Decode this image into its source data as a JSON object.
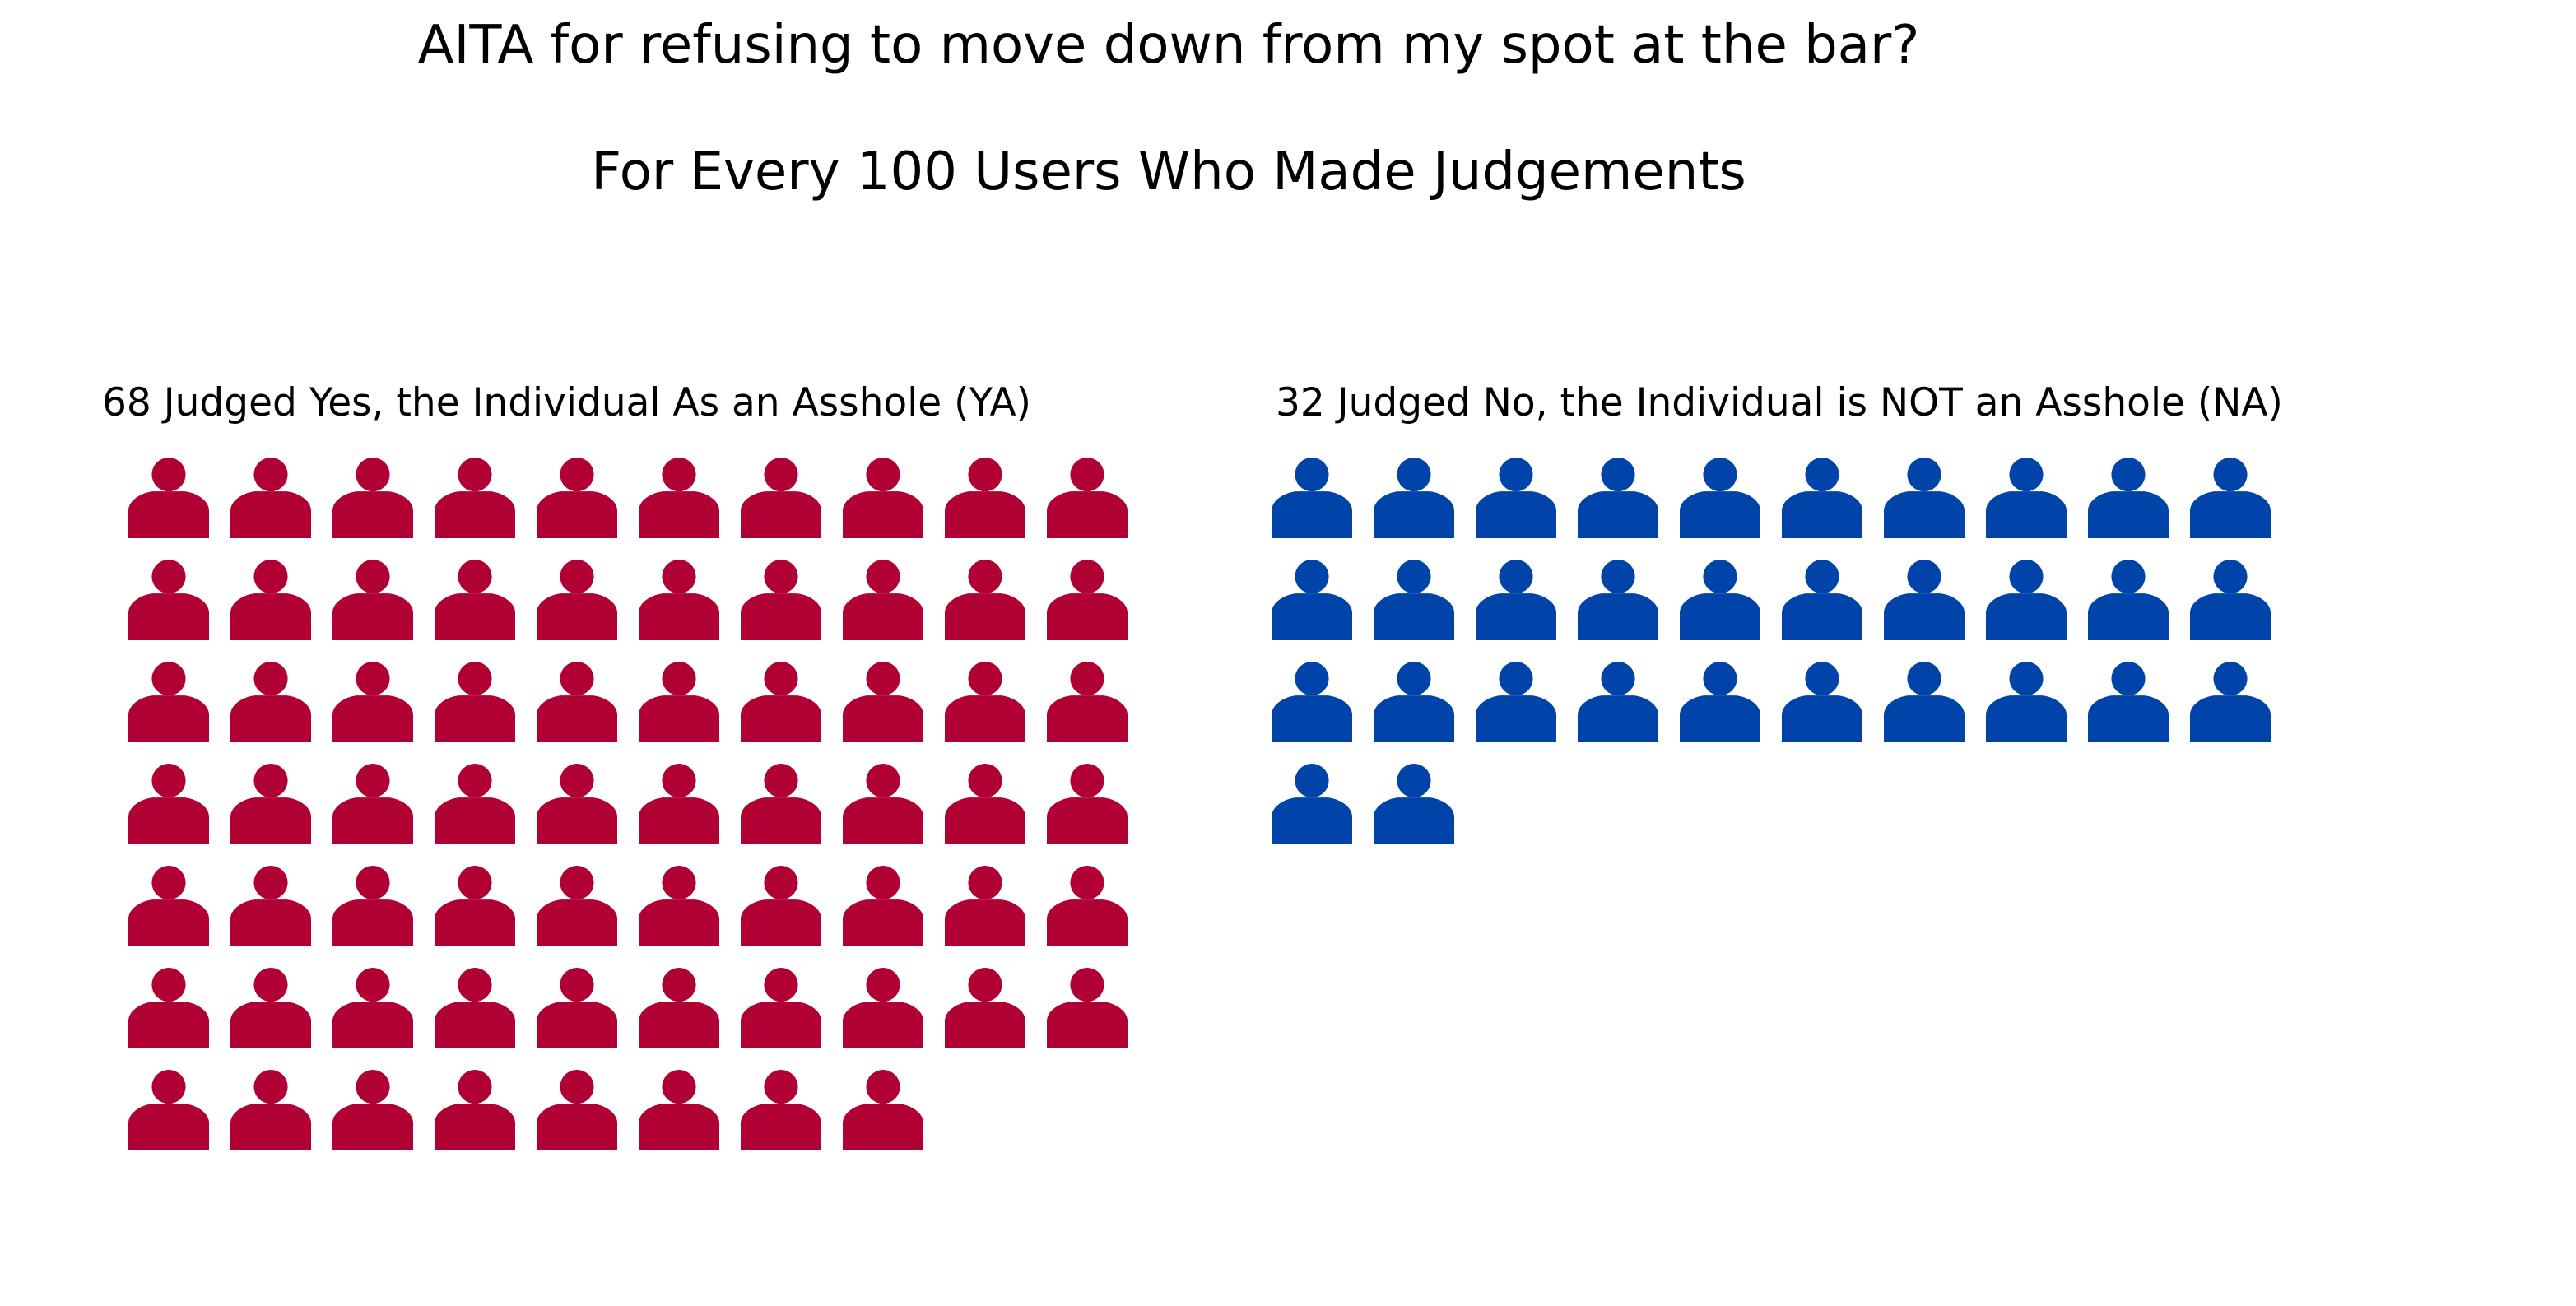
{
  "chart_data": {
    "type": "pictogram",
    "title": "AITA for refusing to move down from my spot at the bar?",
    "subtitle": "For Every 100 Users Who Made Judgements",
    "icons_per_row": 10,
    "groups": [
      {
        "label": "68 Judged Yes, the Individual As an Asshole (YA)",
        "value": 68,
        "color": "#b10034"
      },
      {
        "label": "32 Judged No, the Individual is NOT an Asshole (NA)",
        "value": 32,
        "color": "#0044a9"
      }
    ]
  }
}
